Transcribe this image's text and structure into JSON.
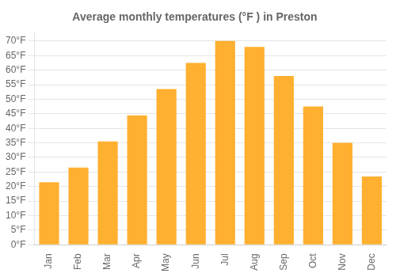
{
  "chart_data": {
    "type": "bar",
    "title": "Average monthly temperatures (°F ) in Preston",
    "categories": [
      "Jan",
      "Feb",
      "Mar",
      "Apr",
      "May",
      "Jun",
      "Jul",
      "Aug",
      "Sep",
      "Oct",
      "Nov",
      "Dec"
    ],
    "values": [
      21.5,
      26.5,
      35.5,
      44.5,
      53.5,
      62.5,
      70.0,
      68.0,
      58.0,
      47.5,
      35.0,
      23.5
    ],
    "color": "#FFB030",
    "ylim": [
      0,
      73
    ],
    "yticks": [
      {
        "value": 0,
        "label": "0°F"
      },
      {
        "value": 5,
        "label": "5°F"
      },
      {
        "value": 10,
        "label": "10°F"
      },
      {
        "value": 15,
        "label": "15°F"
      },
      {
        "value": 20,
        "label": "20°F"
      },
      {
        "value": 25,
        "label": "25°F"
      },
      {
        "value": 30,
        "label": "30°F"
      },
      {
        "value": 35,
        "label": "35°F"
      },
      {
        "value": 40,
        "label": "40°F"
      },
      {
        "value": 45,
        "label": "45°F"
      },
      {
        "value": 50,
        "label": "50°F"
      },
      {
        "value": 55,
        "label": "55°F"
      },
      {
        "value": 60,
        "label": "60°F"
      },
      {
        "value": 65,
        "label": "65°F"
      },
      {
        "value": 70,
        "label": "70°F"
      }
    ],
    "grid": true
  }
}
